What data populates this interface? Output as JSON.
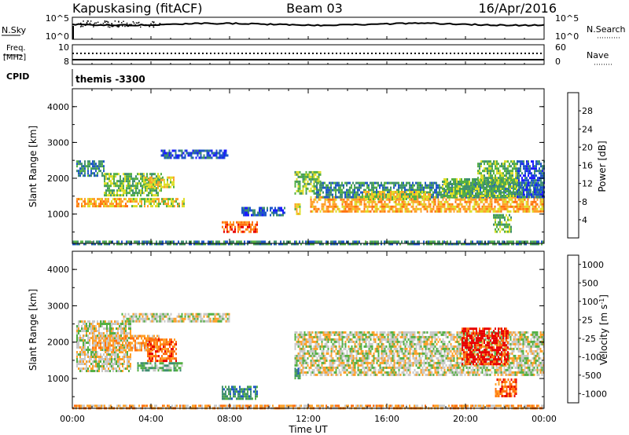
{
  "header": {
    "station": "Kapuskasing (fitACF)",
    "beam": "Beam 03",
    "date": "16/Apr/2016"
  },
  "noise_panel": {
    "left_label": "N.Sky",
    "right_label": "N.Search",
    "left_ticks": [
      "10^5",
      "10^0"
    ],
    "right_ticks": [
      "10^5",
      "10^0"
    ]
  },
  "freq_panel": {
    "left_label_1": "Freq.",
    "left_label_2": "[MHz]",
    "right_label": "Nave",
    "left_ticks": [
      "10",
      "8"
    ],
    "right_ticks": [
      "60",
      "0"
    ]
  },
  "cpid": {
    "label": "CPID",
    "value": "themis -3300"
  },
  "chart_data": [
    {
      "type": "heatmap",
      "name": "power",
      "ylabel": "Slant Range [km]",
      "ylim": [
        180,
        4500
      ],
      "yticks": [
        1000,
        2000,
        3000,
        4000
      ],
      "xlim_hours": [
        0,
        24
      ],
      "colorbar": {
        "label": "Power [dB]",
        "ticks": [
          "4",
          "8",
          "12",
          "16",
          "20",
          "24",
          "28"
        ],
        "colors": [
          "#1a1aff",
          "#1e56c8",
          "#3f8f70",
          "#54b044",
          "#dede28",
          "#ffa028",
          "#ff7010",
          "#e80000"
        ]
      },
      "bands": [
        {
          "start": 0.2,
          "end": 3.0,
          "range_start": 1200,
          "range_end": 1450,
          "level": 5
        },
        {
          "start": 0.2,
          "end": 1.6,
          "range_start": 2100,
          "range_end": 2500,
          "level": 2
        },
        {
          "start": 1.6,
          "end": 4.5,
          "range_start": 1500,
          "range_end": 2150,
          "level": 3
        },
        {
          "start": 3.0,
          "end": 5.7,
          "range_start": 1200,
          "range_end": 1450,
          "level": 4
        },
        {
          "start": 3.6,
          "end": 5.2,
          "range_start": 1750,
          "range_end": 2050,
          "level": 4
        },
        {
          "start": 4.5,
          "end": 7.9,
          "range_start": 2550,
          "range_end": 2800,
          "level": 1
        },
        {
          "start": 7.6,
          "end": 9.4,
          "range_start": 480,
          "range_end": 800,
          "level": 6
        },
        {
          "start": 8.6,
          "end": 10.8,
          "range_start": 1000,
          "range_end": 1200,
          "level": 1
        },
        {
          "start": 11.3,
          "end": 12.6,
          "range_start": 1550,
          "range_end": 2200,
          "level": 3
        },
        {
          "start": 11.3,
          "end": 11.6,
          "range_start": 1000,
          "range_end": 1300,
          "level": 4
        },
        {
          "start": 12.1,
          "end": 24.0,
          "range_start": 1100,
          "range_end": 1500,
          "level": 5
        },
        {
          "start": 12.4,
          "end": 24.0,
          "range_start": 1500,
          "range_end": 1900,
          "level": 2
        },
        {
          "start": 14.8,
          "end": 18.2,
          "range_start": 1450,
          "range_end": 1650,
          "level": 4
        },
        {
          "start": 18.8,
          "end": 22.6,
          "range_start": 1500,
          "range_end": 2000,
          "level": 3
        },
        {
          "start": 20.6,
          "end": 22.6,
          "range_start": 1900,
          "range_end": 2500,
          "level": 3
        },
        {
          "start": 21.4,
          "end": 22.3,
          "range_start": 500,
          "range_end": 1000,
          "level": 3
        },
        {
          "start": 22.6,
          "end": 24.0,
          "range_start": 1500,
          "range_end": 2500,
          "level": 1
        },
        {
          "start": 0.0,
          "end": 24.0,
          "range_start": 180,
          "range_end": 260,
          "level": 2
        }
      ]
    },
    {
      "type": "heatmap",
      "name": "velocity",
      "ylabel": "Slant Range [km]",
      "ylim": [
        180,
        4500
      ],
      "yticks": [
        1000,
        2000,
        3000,
        4000
      ],
      "xlim_hours": [
        0,
        24
      ],
      "colorbar": {
        "label": "Velocity",
        "ticks": [
          "1000",
          "500",
          "100",
          "25",
          "-25",
          "-100",
          "-500",
          "-1000"
        ],
        "colors": [
          "#1a1aff",
          "#1e56c8",
          "#3f8f70",
          "#54b044",
          "#c8c8c8",
          "#ffa028",
          "#ff7010",
          "#e80000"
        ]
      },
      "bands": [
        {
          "start": 0.2,
          "end": 3.0,
          "range_start": 1200,
          "range_end": 2600,
          "level": 4
        },
        {
          "start": 1.0,
          "end": 4.5,
          "range_start": 1800,
          "range_end": 2200,
          "level": 5
        },
        {
          "start": 2.5,
          "end": 8.0,
          "range_start": 2550,
          "range_end": 2800,
          "level": 4
        },
        {
          "start": 3.3,
          "end": 5.6,
          "range_start": 1250,
          "range_end": 1450,
          "level": 3
        },
        {
          "start": 3.8,
          "end": 5.3,
          "range_start": 1500,
          "range_end": 2100,
          "level": 6
        },
        {
          "start": 7.6,
          "end": 9.4,
          "range_start": 450,
          "range_end": 800,
          "level": 2
        },
        {
          "start": 11.3,
          "end": 24.0,
          "range_start": 1100,
          "range_end": 2300,
          "level": 4
        },
        {
          "start": 11.3,
          "end": 11.6,
          "range_start": 1000,
          "range_end": 1300,
          "level": 2
        },
        {
          "start": 19.8,
          "end": 22.2,
          "range_start": 1400,
          "range_end": 2400,
          "level": 7
        },
        {
          "start": 21.5,
          "end": 22.6,
          "range_start": 500,
          "range_end": 1000,
          "level": 6
        },
        {
          "start": 0.0,
          "end": 24.0,
          "range_start": 180,
          "range_end": 280,
          "level": 5
        }
      ]
    }
  ],
  "xaxis": {
    "ticks": [
      "00:00",
      "04:00",
      "08:00",
      "12:00",
      "16:00",
      "20:00",
      "00:00"
    ],
    "label": "Time UT"
  }
}
